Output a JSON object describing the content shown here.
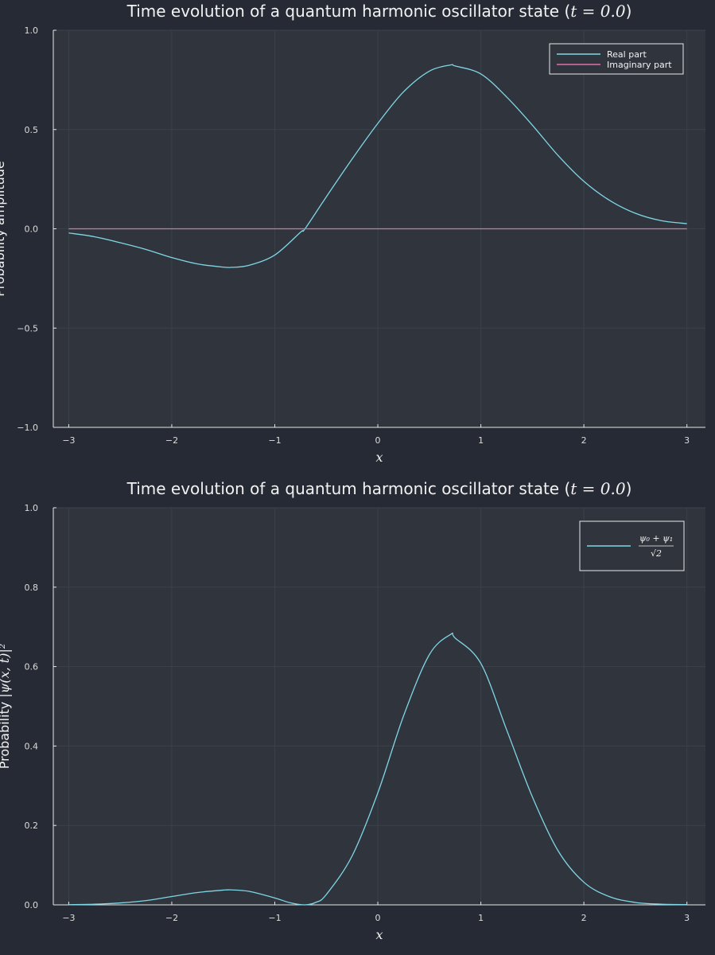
{
  "colors": {
    "figure_bg": "#262a35",
    "plot_bg": "#30353d",
    "grid": "#3b414b",
    "axis": "#e6e6e6",
    "text": "#f2f2f2",
    "tick_text": "#dcdcdc",
    "series_1": "#7fd6e6",
    "series_2": "#e26fa8"
  },
  "chart_data": [
    {
      "type": "line",
      "title": "Time evolution of a quantum harmonic oscillator state (t = 0.0)",
      "title_text": "Time evolution of a quantum harmonic oscillator state (",
      "title_math": "t = 0.0",
      "title_close": ")",
      "xlabel": "x",
      "ylabel": "Probability amplitude",
      "xlim": [
        -3.15,
        3.18
      ],
      "ylim": [
        -1.0,
        1.0
      ],
      "xticks": [
        -3,
        -2,
        -1,
        0,
        1,
        2,
        3
      ],
      "xtick_labels": [
        "−3",
        "−2",
        "−1",
        "0",
        "1",
        "2",
        "3"
      ],
      "yticks": [
        -1.0,
        -0.5,
        0.0,
        0.5,
        1.0
      ],
      "ytick_labels": [
        "−1.0",
        "−0.5",
        "0.0",
        "0.5",
        "1.0"
      ],
      "grid": true,
      "legend_position": "top-right",
      "x": [
        -3.0,
        -2.75,
        -2.5,
        -2.25,
        -2.0,
        -1.75,
        -1.5,
        -1.414,
        -1.25,
        -1.0,
        -0.75,
        -0.707,
        -0.5,
        -0.25,
        0.0,
        0.25,
        0.5,
        0.707,
        0.75,
        1.0,
        1.25,
        1.5,
        1.75,
        2.0,
        2.25,
        2.5,
        2.75,
        3.0
      ],
      "series": [
        {
          "name": "Real part",
          "color": "#7fd6e6",
          "values": [
            -0.021,
            -0.04,
            -0.07,
            -0.104,
            -0.145,
            -0.177,
            -0.193,
            -0.194,
            -0.184,
            -0.132,
            -0.017,
            0.0,
            0.161,
            0.351,
            0.531,
            0.69,
            0.794,
            0.825,
            0.82,
            0.78,
            0.664,
            0.522,
            0.369,
            0.239,
            0.143,
            0.078,
            0.041,
            0.026
          ]
        },
        {
          "name": "Imaginary part",
          "color": "#e26fa8",
          "values": [
            0,
            0,
            0,
            0,
            0,
            0,
            0,
            0,
            0,
            0,
            0,
            0,
            0,
            0,
            0,
            0,
            0,
            0,
            0,
            0,
            0,
            0,
            0,
            0,
            0,
            0,
            0,
            0
          ]
        }
      ]
    },
    {
      "type": "line",
      "title": "Time evolution of a quantum harmonic oscillator state (t = 0.0)",
      "title_text": "Time evolution of a quantum harmonic oscillator state (",
      "title_math": "t = 0.0",
      "title_close": ")",
      "xlabel": "x",
      "ylabel": "Probability |ψ(x,t)|²",
      "ylabel_text": "Probability ",
      "ylabel_math": "|ψ(x, t)|²",
      "xlim": [
        -3.15,
        3.18
      ],
      "ylim": [
        0.0,
        1.0
      ],
      "xticks": [
        -3,
        -2,
        -1,
        0,
        1,
        2,
        3
      ],
      "xtick_labels": [
        "−3",
        "−2",
        "−1",
        "0",
        "1",
        "2",
        "3"
      ],
      "yticks": [
        0.0,
        0.2,
        0.4,
        0.6,
        0.8,
        1.0
      ],
      "ytick_labels": [
        "0.0",
        "0.2",
        "0.4",
        "0.6",
        "0.8",
        "1.0"
      ],
      "grid": true,
      "legend_position": "top-right",
      "x": [
        -3.0,
        -2.75,
        -2.5,
        -2.25,
        -2.0,
        -1.75,
        -1.5,
        -1.414,
        -1.25,
        -1.0,
        -0.85,
        -0.707,
        -0.6,
        -0.5,
        -0.25,
        0.0,
        0.25,
        0.5,
        0.707,
        0.75,
        1.0,
        1.25,
        1.5,
        1.75,
        2.0,
        2.25,
        2.5,
        2.75,
        3.0
      ],
      "series": [
        {
          "name": "(ψ₀ + ψ₁)/√2",
          "legend_num": "ψ₀ + ψ₁",
          "legend_den": "√2",
          "color": "#7fd6e6",
          "values": [
            0.0005,
            0.0016,
            0.0049,
            0.0108,
            0.021,
            0.031,
            0.0372,
            0.0376,
            0.034,
            0.0174,
            0.0052,
            0.0,
            0.0065,
            0.026,
            0.123,
            0.282,
            0.476,
            0.63,
            0.681,
            0.672,
            0.608,
            0.441,
            0.272,
            0.136,
            0.057,
            0.0205,
            0.0061,
            0.0017,
            0.0007
          ]
        }
      ]
    }
  ]
}
